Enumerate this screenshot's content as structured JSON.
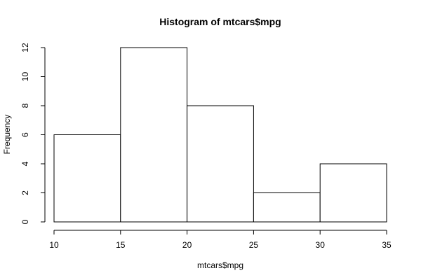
{
  "chart_data": {
    "type": "bar",
    "title": "Histogram of mtcars$mpg",
    "xlabel": "mtcars$mpg",
    "ylabel": "Frequency",
    "bins": [
      {
        "x0": 10,
        "x1": 15,
        "count": 6
      },
      {
        "x0": 15,
        "x1": 20,
        "count": 12
      },
      {
        "x0": 20,
        "x1": 25,
        "count": 8
      },
      {
        "x0": 25,
        "x1": 30,
        "count": 2
      },
      {
        "x0": 30,
        "x1": 35,
        "count": 4
      }
    ],
    "xlim": [
      10,
      35
    ],
    "ylim": [
      0,
      12
    ],
    "xticks": [
      10,
      15,
      20,
      25,
      30,
      35
    ],
    "yticks": [
      0,
      2,
      4,
      6,
      8,
      10,
      12
    ],
    "grid": false,
    "legend": "none",
    "colors": {
      "bar_fill": "#ffffff",
      "bar_stroke": "#000000",
      "text": "#000000"
    }
  }
}
